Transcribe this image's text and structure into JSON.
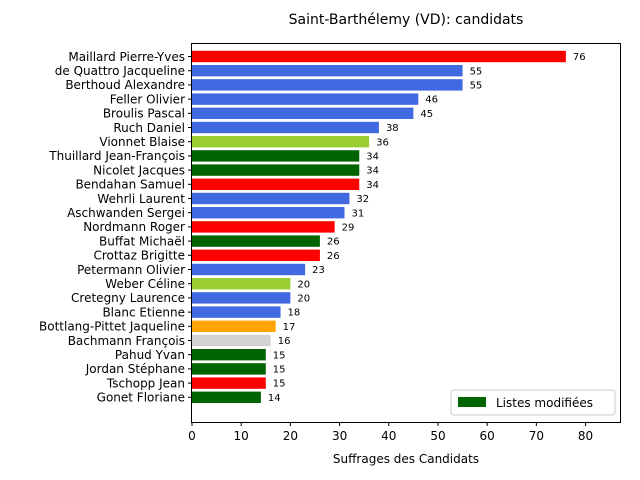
{
  "chart_data": {
    "type": "bar",
    "orientation": "horizontal",
    "title": "Saint-Barthélemy (VD): candidats",
    "xlabel": "Suffrages des Candidats",
    "ylabel": "",
    "xlim": [
      0,
      87
    ],
    "xticks": [
      0,
      10,
      20,
      30,
      40,
      50,
      60,
      70,
      80
    ],
    "grid": false,
    "categories": [
      "Maillard Pierre-Yves",
      "de Quattro Jacqueline",
      "Berthoud Alexandre",
      "Feller Olivier",
      "Broulis Pascal",
      "Ruch Daniel",
      "Vionnet Blaise",
      "Thuillard Jean-François",
      "Nicolet Jacques",
      "Bendahan Samuel",
      "Wehrli Laurent",
      "Aschwanden Sergei",
      "Nordmann Roger",
      "Buffat Michaël",
      "Crottaz Brigitte",
      "Petermann Olivier",
      "Weber Céline",
      "Cretegny Laurence",
      "Blanc Etienne",
      "Bottlang-Pittet Jaqueline",
      "Bachmann François",
      "Pahud Yvan",
      "Jordan Stéphane",
      "Tschopp Jean",
      "Gonet Floriane"
    ],
    "values": [
      76,
      55,
      55,
      46,
      45,
      38,
      36,
      34,
      34,
      34,
      32,
      31,
      29,
      26,
      26,
      23,
      20,
      20,
      18,
      17,
      16,
      15,
      15,
      15,
      14
    ],
    "colors": [
      "#ff0000",
      "#4169e1",
      "#4169e1",
      "#4169e1",
      "#4169e1",
      "#4169e1",
      "#9acd32",
      "#006400",
      "#006400",
      "#ff0000",
      "#4169e1",
      "#4169e1",
      "#ff0000",
      "#006400",
      "#ff0000",
      "#4169e1",
      "#9acd32",
      "#4169e1",
      "#4169e1",
      "#ffa500",
      "#d3d3d3",
      "#006400",
      "#006400",
      "#ff0000",
      "#006400"
    ],
    "legend": {
      "placement": "lower-right",
      "entries": [
        {
          "label": "Listes modifiées",
          "color": "#006400"
        }
      ]
    }
  }
}
